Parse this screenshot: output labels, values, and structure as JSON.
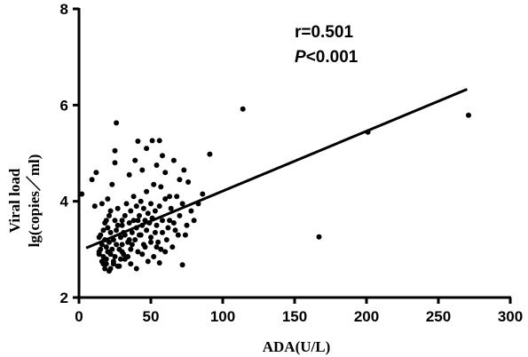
{
  "chart_data": {
    "type": "scatter",
    "xlabel": "ADA(U/L)",
    "ylabel_line1": "Viral load",
    "ylabel_line2": "lg(copies／ml)",
    "xlim": [
      0,
      300
    ],
    "ylim": [
      2,
      8
    ],
    "xticks": [
      0,
      50,
      100,
      150,
      200,
      250,
      300
    ],
    "yticks": [
      2,
      4,
      6,
      8
    ],
    "grid": false,
    "annotations": {
      "r_text": "r=0.501",
      "p_symbol": "P",
      "p_rest": "<0.001"
    },
    "regression_line": {
      "x": [
        5,
        270
      ],
      "y": [
        3.03,
        6.33
      ]
    },
    "points": [
      [
        2,
        4.15
      ],
      [
        11,
        3.9
      ],
      [
        14,
        2.95
      ],
      [
        14,
        3.25
      ],
      [
        15,
        3.0
      ],
      [
        15,
        3.3
      ],
      [
        16,
        2.75
      ],
      [
        16,
        3.1
      ],
      [
        17,
        2.85
      ],
      [
        17,
        3.4
      ],
      [
        18,
        2.6
      ],
      [
        18,
        3.2
      ],
      [
        18,
        3.55
      ],
      [
        19,
        2.8
      ],
      [
        19,
        3.05
      ],
      [
        19,
        2.7
      ],
      [
        20,
        3.45
      ],
      [
        20,
        2.95
      ],
      [
        21,
        3.7
      ],
      [
        21,
        3.15
      ],
      [
        22,
        2.9
      ],
      [
        22,
        3.35
      ],
      [
        22,
        2.6
      ],
      [
        23,
        3.0
      ],
      [
        24,
        2.75
      ],
      [
        24,
        3.2
      ],
      [
        25,
        3.6
      ],
      [
        25,
        2.85
      ],
      [
        26,
        3.1
      ],
      [
        26,
        3.4
      ],
      [
        27,
        2.65
      ],
      [
        27,
        3.85
      ],
      [
        28,
        3.0
      ],
      [
        29,
        3.25
      ],
      [
        29,
        2.8
      ],
      [
        30,
        3.5
      ],
      [
        30,
        3.1
      ],
      [
        31,
        2.9
      ],
      [
        32,
        3.7
      ],
      [
        32,
        3.3
      ],
      [
        33,
        3.95
      ],
      [
        34,
        3.15
      ],
      [
        34,
        2.85
      ],
      [
        35,
        3.55
      ],
      [
        36,
        3.0
      ],
      [
        36,
        3.8
      ],
      [
        37,
        3.35
      ],
      [
        38,
        4.1
      ],
      [
        38,
        3.6
      ],
      [
        39,
        3.2
      ],
      [
        40,
        3.45
      ],
      [
        40,
        3.9
      ],
      [
        41,
        2.95
      ],
      [
        42,
        3.7
      ],
      [
        42,
        3.3
      ],
      [
        43,
        4.0
      ],
      [
        44,
        3.5
      ],
      [
        45,
        3.1
      ],
      [
        45,
        3.85
      ],
      [
        46,
        3.6
      ],
      [
        47,
        4.2
      ],
      [
        47,
        3.4
      ],
      [
        48,
        3.75
      ],
      [
        49,
        3.55
      ],
      [
        50,
        3.95
      ],
      [
        50,
        3.25
      ],
      [
        51,
        3.65
      ],
      [
        52,
        4.35
      ],
      [
        53,
        3.8
      ],
      [
        54,
        3.5
      ],
      [
        55,
        3.15
      ],
      [
        56,
        3.9
      ],
      [
        57,
        4.3
      ],
      [
        58,
        3.6
      ],
      [
        60,
        4.05
      ],
      [
        62,
        3.45
      ],
      [
        64,
        3.85
      ],
      [
        66,
        3.55
      ],
      [
        68,
        4.1
      ],
      [
        70,
        3.7
      ],
      [
        72,
        3.95
      ],
      [
        74,
        3.3
      ],
      [
        76,
        4.4
      ],
      [
        78,
        3.8
      ],
      [
        80,
        3.6
      ],
      [
        83,
        3.95
      ],
      [
        86,
        4.15
      ],
      [
        9,
        4.45
      ],
      [
        12,
        4.6
      ],
      [
        16,
        3.95
      ],
      [
        20,
        4.05
      ],
      [
        23,
        4.35
      ],
      [
        25,
        5.05
      ],
      [
        25,
        4.8
      ],
      [
        26,
        5.63
      ],
      [
        30,
        3.6
      ],
      [
        35,
        4.55
      ],
      [
        39,
        4.85
      ],
      [
        41,
        5.25
      ],
      [
        44,
        4.65
      ],
      [
        47,
        5.1
      ],
      [
        51,
        5.26
      ],
      [
        54,
        4.75
      ],
      [
        56,
        5.26
      ],
      [
        58,
        4.95
      ],
      [
        60,
        4.6
      ],
      [
        63,
        4.1
      ],
      [
        66,
        4.85
      ],
      [
        70,
        4.45
      ],
      [
        73,
        4.65
      ],
      [
        91,
        4.98
      ],
      [
        114,
        5.92
      ],
      [
        167,
        3.26
      ],
      [
        201,
        5.44
      ],
      [
        271,
        5.79
      ],
      [
        14,
        2.9
      ],
      [
        17,
        2.7
      ],
      [
        21,
        2.55
      ],
      [
        24,
        2.7
      ],
      [
        28,
        2.65
      ],
      [
        32,
        2.8
      ],
      [
        36,
        2.7
      ],
      [
        40,
        2.6
      ],
      [
        44,
        2.9
      ],
      [
        48,
        2.75
      ],
      [
        52,
        2.85
      ],
      [
        56,
        2.72
      ],
      [
        60,
        2.95
      ],
      [
        72,
        2.68
      ],
      [
        30,
        2.95
      ],
      [
        35,
        3.2
      ],
      [
        43,
        3.3
      ],
      [
        46,
        3.05
      ],
      [
        50,
        3.15
      ],
      [
        53,
        3.35
      ],
      [
        57,
        3.0
      ],
      [
        61,
        3.2
      ],
      [
        65,
        3.05
      ],
      [
        69,
        3.3
      ],
      [
        75,
        3.5
      ],
      [
        19,
        3.6
      ],
      [
        22,
        3.8
      ],
      [
        27,
        3.5
      ],
      [
        31,
        3.35
      ],
      [
        37,
        3.1
      ],
      [
        41,
        3.6
      ],
      [
        54,
        3.05
      ],
      [
        58,
        3.35
      ],
      [
        63,
        3.6
      ],
      [
        67,
        3.4
      ]
    ]
  }
}
